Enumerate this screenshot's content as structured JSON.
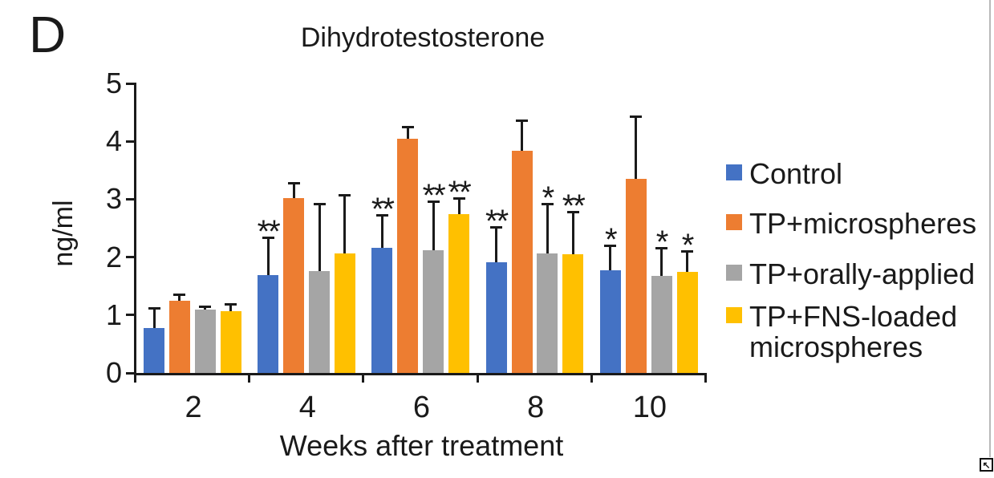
{
  "panel_label": "D",
  "chart_data": {
    "type": "bar",
    "title": "Dihydrotestosterone",
    "xlabel": "Weeks after treatment",
    "ylabel": "ng/ml",
    "ylim": [
      0,
      5
    ],
    "yticks": [
      0,
      1,
      2,
      3,
      4,
      5
    ],
    "categories": [
      "2",
      "4",
      "6",
      "8",
      "10"
    ],
    "grid": false,
    "legend_position": "right",
    "error_bars": "upper",
    "series": [
      {
        "name": "Control",
        "color": "#4472C4",
        "values": [
          0.78,
          1.69,
          2.16,
          1.91,
          1.77
        ],
        "errors": [
          0.36,
          0.66,
          0.58,
          0.62,
          0.45
        ],
        "significance": [
          "",
          "**",
          "**",
          "**",
          "*"
        ]
      },
      {
        "name": "TP+microspheres",
        "color": "#ED7D31",
        "values": [
          1.24,
          3.02,
          4.05,
          3.83,
          3.35
        ],
        "errors": [
          0.13,
          0.28,
          0.22,
          0.55,
          1.1
        ],
        "significance": [
          "",
          "",
          "",
          "",
          ""
        ]
      },
      {
        "name": "TP+orally-applied",
        "color": "#A5A5A5",
        "values": [
          1.1,
          1.76,
          2.12,
          2.07,
          1.68
        ],
        "errors": [
          0.07,
          1.17,
          0.86,
          0.87,
          0.49
        ],
        "significance": [
          "",
          "",
          "**",
          "*",
          "*"
        ]
      },
      {
        "name": "TP+FNS-loaded microspheres",
        "color": "#FFC000",
        "values": [
          1.07,
          2.07,
          2.74,
          2.05,
          1.74
        ],
        "errors": [
          0.14,
          1.02,
          0.3,
          0.75,
          0.38
        ],
        "significance": [
          "",
          "",
          "**",
          "**",
          "*"
        ]
      }
    ]
  },
  "legend": {
    "items": [
      {
        "label_lines": [
          "Control"
        ],
        "color": "#4472C4"
      },
      {
        "label_lines": [
          "TP+microspheres"
        ],
        "color": "#ED7D31"
      },
      {
        "label_lines": [
          "TP+orally-applied"
        ],
        "color": "#A5A5A5"
      },
      {
        "label_lines": [
          "TP+FNS-loaded",
          "microspheres"
        ],
        "color": "#FFC000"
      }
    ]
  },
  "corner_icon": {
    "glyph": "↖"
  }
}
